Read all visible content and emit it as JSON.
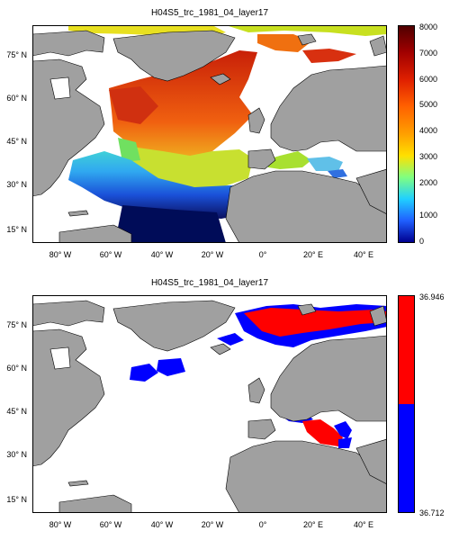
{
  "panels": [
    {
      "title": "H04S5_trc_1981_04_layer17",
      "colorbar": {
        "ticks": [
          "8000",
          "7000",
          "6000",
          "5000",
          "4000",
          "3000",
          "2000",
          "1000",
          "0"
        ],
        "range": [
          0,
          8000
        ],
        "colormap": "jet"
      }
    },
    {
      "title": "H04S5_trc_1981_04_layer17",
      "colorbar": {
        "ticks": [
          "36.946",
          "36.712"
        ],
        "range": [
          36.712,
          36.946
        ],
        "colors": [
          "#ff0000",
          "#0000ff"
        ]
      }
    }
  ],
  "axes": {
    "lat_labels": [
      "75° N",
      "60° N",
      "45° N",
      "30° N",
      "15° N"
    ],
    "lon_labels": [
      "80° W",
      "60° W",
      "40° W",
      "20° W",
      "0°",
      "20° E",
      "40° E"
    ],
    "lon_range": [
      -90,
      50
    ],
    "lat_range": [
      8,
      87
    ]
  },
  "colors": {
    "land": "#a0a0a0",
    "ocean_missing": "#ffffff",
    "coast": "#000000"
  }
}
